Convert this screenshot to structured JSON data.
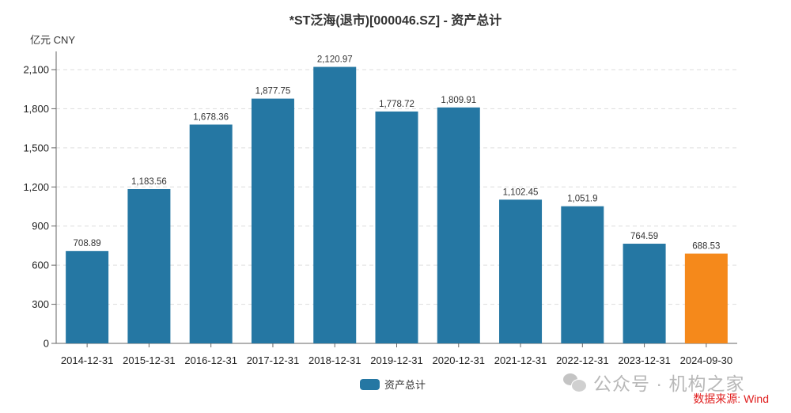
{
  "header": {
    "title": "*ST泛海(退市)[000046.SZ] - 资产总计",
    "unit": "亿元  CNY"
  },
  "legend": {
    "label": "资产总计",
    "color": "#2577a3"
  },
  "watermark": {
    "text": "公众号 · 机构之家",
    "icon": "wechat-icon"
  },
  "source": "数据来源: Wind",
  "colors": {
    "bar": "#2577a3",
    "highlight": "#f5891b",
    "axis": "#666666",
    "grid": "#dddddd",
    "source": "#e02020"
  },
  "chart_data": {
    "type": "bar",
    "title": "*ST泛海(退市)[000046.SZ] - 资产总计",
    "xlabel": "",
    "ylabel": "亿元 CNY",
    "ylim": [
      0,
      2200
    ],
    "yticks": [
      0,
      300,
      600,
      900,
      1200,
      1500,
      1800,
      2100
    ],
    "ytick_labels": [
      "0",
      "300",
      "600",
      "900",
      "1,200",
      "1,500",
      "1,800",
      "2,100"
    ],
    "grid": true,
    "legend_position": "bottom",
    "categories": [
      "2014-12-31",
      "2015-12-31",
      "2016-12-31",
      "2017-12-31",
      "2018-12-31",
      "2019-12-31",
      "2020-12-31",
      "2021-12-31",
      "2022-12-31",
      "2023-12-31",
      "2024-09-30"
    ],
    "series": [
      {
        "name": "资产总计",
        "values": [
          708.89,
          1183.56,
          1678.36,
          1877.75,
          2120.97,
          1778.72,
          1809.91,
          1102.45,
          1051.9,
          764.59,
          688.53
        ],
        "labels": [
          "708.89",
          "1,183.56",
          "1,678.36",
          "1,877.75",
          "2,120.97",
          "1,778.72",
          "1,809.91",
          "1,102.45",
          "1,051.9",
          "764.59",
          "688.53"
        ],
        "colors": [
          "#2577a3",
          "#2577a3",
          "#2577a3",
          "#2577a3",
          "#2577a3",
          "#2577a3",
          "#2577a3",
          "#2577a3",
          "#2577a3",
          "#2577a3",
          "#f5891b"
        ]
      }
    ]
  }
}
